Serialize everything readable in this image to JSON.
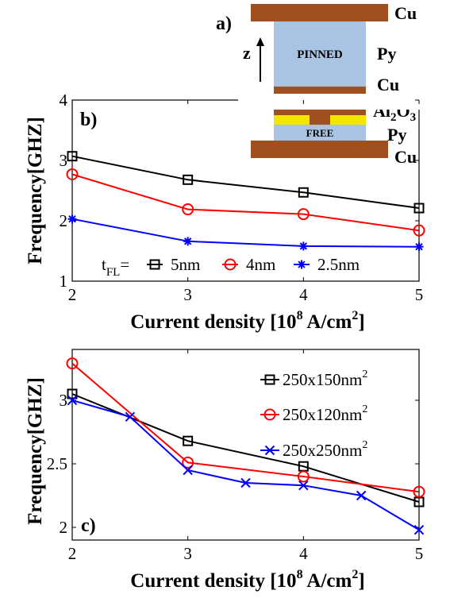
{
  "panel_labels": {
    "a": "a)",
    "b": "b)",
    "c": "c)"
  },
  "device": {
    "layers": {
      "cu_top": "Cu",
      "py_pinned": "Py",
      "cu_mid": "Cu",
      "al2o3_main": "Al",
      "al2o3_sub2": "2",
      "al2o3_o": "O",
      "al2o3_sub3": "3",
      "py_free": "Py",
      "cu_bottom": "Cu"
    },
    "pinned_text": "PINNED",
    "free_text": "FREE",
    "axis_label": "z",
    "colors": {
      "copper": "#a0501e",
      "py": "#a9c3e2",
      "oxide": "#f2e600"
    }
  },
  "axes_labels": {
    "b": {
      "ylabel": "Frequency[GHZ]",
      "xlabel_pre": "Current density [10",
      "xlabel_exp": "8",
      "xlabel_mid": " A/cm",
      "xlabel_exp2": "2",
      "xlabel_post": "]"
    },
    "c": {
      "ylabel": "Frequency[GHZ]",
      "xlabel_pre": "Current density [10",
      "xlabel_exp": "8",
      "xlabel_mid": " A/cm",
      "xlabel_exp2": "2",
      "xlabel_post": "]"
    }
  },
  "legend": {
    "b_prefix": "t",
    "b_prefix_sub": "FL",
    "b_equals": "=",
    "b_items": [
      "5nm",
      "4nm",
      "2.5nm"
    ],
    "c_items": [
      {
        "text": "250x150nm",
        "sup": "2"
      },
      {
        "text": "250x120nm",
        "sup": "2"
      },
      {
        "text": "250x250nm",
        "sup": "2"
      }
    ]
  },
  "chart_data": [
    {
      "id": "b",
      "type": "line",
      "xlabel": "Current density [10^8 A/cm^2]",
      "ylabel": "Frequency[GHZ]",
      "xlim": [
        2,
        5
      ],
      "ylim": [
        1,
        4
      ],
      "xticks": [
        "2",
        "3",
        "4",
        "5"
      ],
      "yticks": [
        "1",
        "2",
        "3",
        "4"
      ],
      "grid": false,
      "legend_position": "bottom",
      "series": [
        {
          "name": "5nm",
          "color": "#000000",
          "marker": "square",
          "x": [
            2,
            3,
            4,
            5
          ],
          "y": [
            3.07,
            2.68,
            2.47,
            2.21
          ]
        },
        {
          "name": "4nm",
          "color": "#ff0000",
          "marker": "circle",
          "x": [
            2,
            3,
            4,
            5
          ],
          "y": [
            2.77,
            2.19,
            2.11,
            1.84
          ]
        },
        {
          "name": "2.5nm",
          "color": "#0000ff",
          "marker": "star",
          "x": [
            2,
            3,
            4,
            5
          ],
          "y": [
            2.03,
            1.66,
            1.58,
            1.57
          ]
        }
      ]
    },
    {
      "id": "c",
      "type": "line",
      "xlabel": "Current density [10^8 A/cm^2]",
      "ylabel": "Frequency[GHZ]",
      "xlim": [
        2,
        5
      ],
      "ylim": [
        1.9,
        3.4
      ],
      "xticks": [
        "2",
        "3",
        "4",
        "5"
      ],
      "yticks": [
        "2",
        "2.5",
        "3"
      ],
      "ytick_values": [
        2,
        2.5,
        3
      ],
      "grid": false,
      "legend_position": "top-right",
      "series": [
        {
          "name": "250x150nm²",
          "color": "#000000",
          "marker": "square",
          "x": [
            2,
            3,
            4,
            5
          ],
          "y": [
            3.05,
            2.68,
            2.48,
            2.2
          ]
        },
        {
          "name": "250x120nm²",
          "color": "#ff0000",
          "marker": "circle",
          "x": [
            2,
            3,
            4,
            5
          ],
          "y": [
            3.29,
            2.51,
            2.4,
            2.28
          ]
        },
        {
          "name": "250x250nm²",
          "color": "#0000ff",
          "marker": "x",
          "x": [
            2,
            2.5,
            3,
            3.5,
            4,
            4.5,
            5
          ],
          "y": [
            3.0,
            2.87,
            2.45,
            2.35,
            2.33,
            2.25,
            1.98
          ]
        }
      ]
    }
  ]
}
